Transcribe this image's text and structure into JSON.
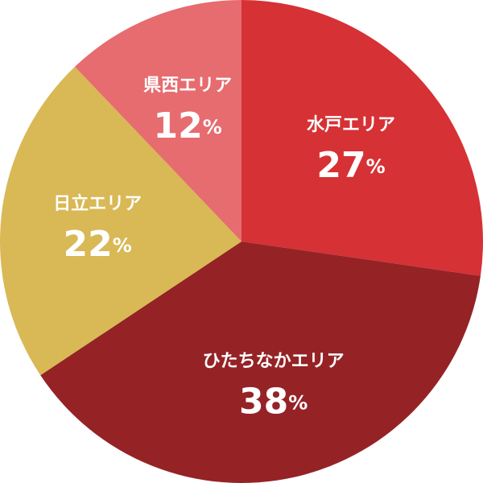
{
  "chart_data": {
    "type": "pie",
    "categories": [
      "水戸エリア",
      "ひたちなかエリア",
      "日立エリア",
      "県西エリア"
    ],
    "values": [
      27,
      38,
      22,
      12
    ],
    "value_labels": [
      "27%",
      "38%",
      "22%",
      "12%"
    ],
    "colors": [
      "#d63135",
      "#952326",
      "#d9b856",
      "#e66c6f"
    ],
    "start_angle": 0,
    "direction": "clockwise"
  }
}
